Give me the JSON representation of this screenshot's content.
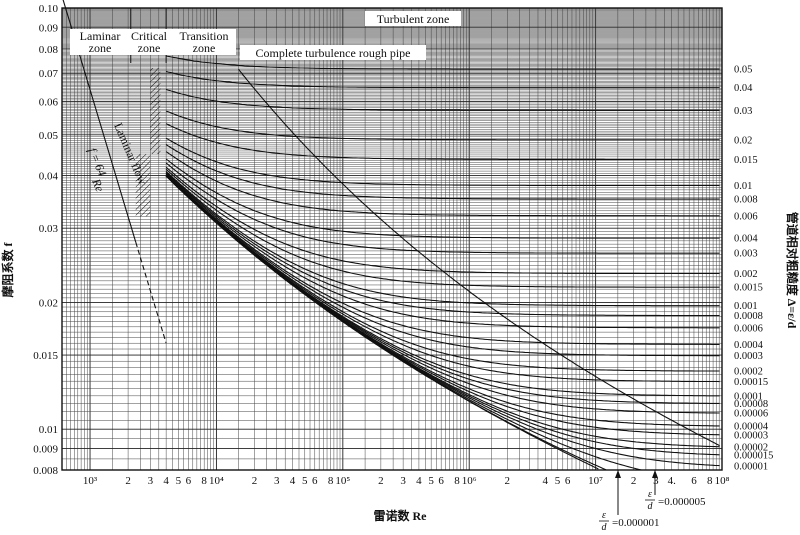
{
  "chart_data": {
    "type": "line",
    "title": "",
    "xlabel": "雷诺数 Re",
    "ylabel": "摩阻系数 f",
    "y2label": "管道相对粗糙度 Δ=ε/d",
    "xscale": "log",
    "yscale": "log",
    "xlim": [
      600,
      100000000
    ],
    "ylim": [
      0.008,
      0.1
    ],
    "grid": true,
    "x_tick_labels": [
      {
        "x": 1000,
        "label": "10³"
      },
      {
        "x": 2000,
        "label": "2"
      },
      {
        "x": 3000,
        "label": "3"
      },
      {
        "x": 4000,
        "label": "4"
      },
      {
        "x": 5000,
        "label": "5"
      },
      {
        "x": 6000,
        "label": "6"
      },
      {
        "x": 8000,
        "label": "8"
      },
      {
        "x": 10000,
        "label": "10⁴"
      },
      {
        "x": 20000,
        "label": "2"
      },
      {
        "x": 30000,
        "label": "3"
      },
      {
        "x": 40000,
        "label": "4"
      },
      {
        "x": 50000,
        "label": "5"
      },
      {
        "x": 60000,
        "label": "6"
      },
      {
        "x": 80000,
        "label": "8"
      },
      {
        "x": 100000,
        "label": "10⁵"
      },
      {
        "x": 200000,
        "label": "2"
      },
      {
        "x": 300000,
        "label": "3"
      },
      {
        "x": 400000,
        "label": "4"
      },
      {
        "x": 500000,
        "label": "5"
      },
      {
        "x": 600000,
        "label": "6"
      },
      {
        "x": 800000,
        "label": "8"
      },
      {
        "x": 1000000,
        "label": "10⁶"
      },
      {
        "x": 2000000,
        "label": "2"
      },
      {
        "x": 4000000,
        "label": "4"
      },
      {
        "x": 5000000,
        "label": "5"
      },
      {
        "x": 6000000,
        "label": "6"
      },
      {
        "x": 10000000,
        "label": "10⁷"
      },
      {
        "x": 20000000,
        "label": "2"
      },
      {
        "x": 30000000,
        "label": "3"
      },
      {
        "x": 40000000,
        "label": "4."
      },
      {
        "x": 60000000,
        "label": "6"
      },
      {
        "x": 80000000,
        "label": "8"
      },
      {
        "x": 100000000,
        "label": "10⁸"
      }
    ],
    "y_tick_labels": [
      {
        "y": 0.1,
        "label": "0.10"
      },
      {
        "y": 0.09,
        "label": "0.09"
      },
      {
        "y": 0.08,
        "label": "0.08"
      },
      {
        "y": 0.07,
        "label": "0.07"
      },
      {
        "y": 0.06,
        "label": "0.06"
      },
      {
        "y": 0.05,
        "label": "0.05"
      },
      {
        "y": 0.04,
        "label": "0.04"
      },
      {
        "y": 0.03,
        "label": "0.03"
      },
      {
        "y": 0.02,
        "label": "0.02"
      },
      {
        "y": 0.015,
        "label": "0.015"
      },
      {
        "y": 0.01,
        "label": "0.01"
      },
      {
        "y": 0.009,
        "label": "0.009"
      },
      {
        "y": 0.008,
        "label": "0.008"
      }
    ],
    "roughness_labels": [
      "0.05",
      "0.04",
      "0.03",
      "0.02",
      "0.015",
      "0.01",
      "0.008",
      "0.006",
      "0.004",
      "0.003",
      "0.002",
      "0.0015",
      "0.001",
      "0.0008",
      "0.0006",
      "0.0004",
      "0.0003",
      "0.0002",
      "0.00015",
      "0.0001",
      "0.00008",
      "0.00006",
      "0.00004",
      "0.00003",
      "0.00002",
      "0.000015",
      "0.00001"
    ],
    "roughness_values": [
      0.05,
      0.04,
      0.03,
      0.02,
      0.015,
      0.01,
      0.008,
      0.006,
      0.004,
      0.003,
      0.002,
      0.0015,
      0.001,
      0.0008,
      0.0006,
      0.0004,
      0.0003,
      0.0002,
      0.00015,
      0.0001,
      8e-05,
      6e-05,
      4e-05,
      3e-05,
      2e-05,
      1.5e-05,
      1e-05
    ],
    "extra_roughness": [
      {
        "label_top": "ε",
        "label_bottom": "d",
        "value_label": "=0.000005",
        "value": 5e-06
      },
      {
        "label_top": "ε",
        "label_bottom": "d",
        "value_label": "=0.000001",
        "value": 1e-06
      }
    ],
    "laminar_line": {
      "formula": "f = 64/Re",
      "f_label": "f = 64",
      "re_label": "Re",
      "x": [
        600,
        2300,
        4000
      ],
      "y": [
        0.1067,
        0.0278,
        0.016
      ]
    },
    "zones": {
      "laminar": [
        "Laminar",
        "zone"
      ],
      "critical": [
        "Critical",
        "zone"
      ],
      "transition": [
        "Transition",
        "zone"
      ],
      "turbulent": "Turbulent zone",
      "rough": "Complete turbulence rough pipe",
      "laminar_flow": "Laminar flow"
    }
  }
}
